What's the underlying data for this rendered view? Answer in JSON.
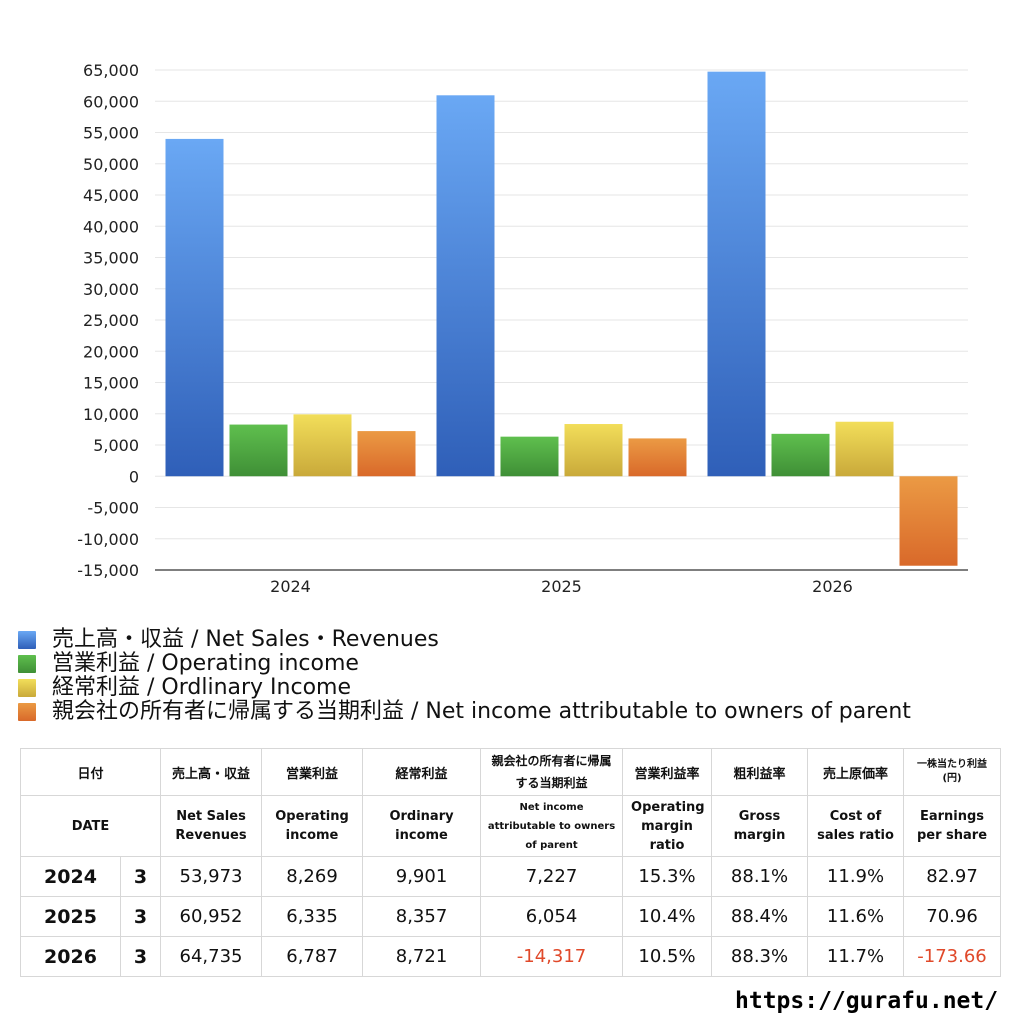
{
  "chart_data": {
    "type": "bar",
    "categories": [
      "2024",
      "2025",
      "2026"
    ],
    "series": [
      {
        "name": "売上高・収益 / Net Sales・Revenues",
        "values": [
          53973,
          60952,
          64735
        ],
        "color_top": "#6aa8f4",
        "color_bottom": "#2f5fb8"
      },
      {
        "name": "営業利益 / Operating income",
        "values": [
          8269,
          6335,
          6787
        ],
        "color_top": "#5fbf4e",
        "color_bottom": "#3f8f36"
      },
      {
        "name": "経常利益 / Ordlinary Income",
        "values": [
          9901,
          8357,
          8721
        ],
        "color_top": "#f2de5a",
        "color_bottom": "#c9a93a"
      },
      {
        "name": "親会社の所有者に帰属する当期利益 / Net income attributable to owners of parent",
        "values": [
          7227,
          6054,
          -14317
        ],
        "color_top": "#eb9a44",
        "color_bottom": "#d9692a"
      }
    ],
    "ylim": [
      -15000,
      65000
    ],
    "yticks": [
      65000,
      60000,
      55000,
      50000,
      45000,
      40000,
      35000,
      30000,
      25000,
      20000,
      15000,
      10000,
      5000,
      0,
      -5000,
      -10000,
      -15000
    ],
    "ytick_labels": [
      "65,000",
      "60,000",
      "55,000",
      "50,000",
      "45,000",
      "40,000",
      "35,000",
      "30,000",
      "25,000",
      "20,000",
      "15,000",
      "10,000",
      "5,000",
      "0",
      "-5,000",
      "-10,000",
      "-15,000"
    ],
    "grid": true,
    "legend": "bottom-left"
  },
  "table": {
    "headers_jp": [
      "日付",
      "売上高・収益",
      "営業利益",
      "経常利益",
      "親会社の所有者に帰属する当期利益",
      "営業利益率",
      "粗利益率",
      "売上原価率",
      "一株当たり利益(円)"
    ],
    "headers_en": [
      "DATE",
      "Net Sales Revenues",
      "Operating income",
      "Ordinary income",
      "Net income attributable to owners of parent",
      "Operating margin ratio",
      "Gross margin",
      "Cost of sales ratio",
      "Earnings per share"
    ],
    "rows": [
      {
        "year": "2024",
        "month": "3",
        "sales": "53,973",
        "op": "8,269",
        "ord": "9,901",
        "net": "7,227",
        "opm": "15.3%",
        "gm": "88.1%",
        "cos": "11.9%",
        "eps": "82.97"
      },
      {
        "year": "2025",
        "month": "3",
        "sales": "60,952",
        "op": "6,335",
        "ord": "8,357",
        "net": "6,054",
        "opm": "10.4%",
        "gm": "88.4%",
        "cos": "11.6%",
        "eps": "70.96"
      },
      {
        "year": "2026",
        "month": "3",
        "sales": "64,735",
        "op": "6,787",
        "ord": "8,721",
        "net": "-14,317",
        "opm": "10.5%",
        "gm": "88.3%",
        "cos": "11.7%",
        "eps": "-173.66"
      }
    ],
    "negative_color": "#e0492a"
  },
  "footer": {
    "url": "https://gurafu.net/"
  }
}
